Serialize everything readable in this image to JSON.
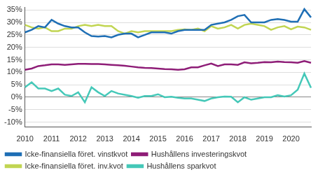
{
  "chart_data": {
    "type": "line",
    "categories": [
      "2010",
      null,
      null,
      null,
      "2011",
      null,
      null,
      null,
      "2012",
      null,
      null,
      null,
      "2013",
      null,
      null,
      null,
      "2014",
      null,
      null,
      null,
      "2015",
      null,
      null,
      null,
      "2016",
      null,
      null,
      null,
      "2017",
      null,
      null,
      null,
      "2018",
      null,
      null,
      null,
      "2019",
      null,
      null,
      null,
      "2020",
      null,
      null,
      null
    ],
    "series": [
      {
        "name": "Icke-finansiella föret. vinstkvot",
        "color": "#1f6fb5",
        "values": [
          26,
          27,
          28.5,
          28,
          31,
          29.5,
          28.5,
          28,
          28,
          26,
          24.5,
          24.3,
          24.5,
          24,
          25,
          25.5,
          25.5,
          24,
          25,
          26,
          26,
          26,
          25.5,
          26.5,
          27,
          27,
          27,
          27,
          29,
          29.5,
          30,
          31,
          32.5,
          33,
          30,
          30,
          30,
          31,
          31.3,
          31,
          30.3,
          30.3,
          35.3,
          32
        ]
      },
      {
        "name": "Hushållens investeringskvot",
        "color": "#8e1d77",
        "values": [
          11,
          11.5,
          12.5,
          12.8,
          13.2,
          13.2,
          13,
          13.2,
          13.4,
          13.4,
          13.3,
          13.3,
          13.2,
          13,
          12.8,
          12.6,
          12.3,
          12,
          11.8,
          11.7,
          11.5,
          11.3,
          11.2,
          11,
          11.2,
          12,
          12,
          12.8,
          13.5,
          12.5,
          13.2,
          13.2,
          13,
          14,
          13.6,
          13.8,
          14.1,
          14,
          14.3,
          14.1,
          14,
          13.8,
          14.5,
          13.8
        ]
      },
      {
        "name": "Icke-finansiella föret. inv.kvot",
        "color": "#c1d552",
        "values": [
          29,
          28,
          27.5,
          28,
          26.5,
          26.5,
          27.5,
          27.5,
          28.5,
          29,
          28.5,
          29,
          28.5,
          28.5,
          26.5,
          25.5,
          26.5,
          26,
          26.5,
          26.5,
          26.5,
          26.5,
          26.5,
          27,
          27.2,
          27,
          27.5,
          26.5,
          28.5,
          27.5,
          28,
          29,
          27.5,
          29,
          29.5,
          29,
          28.5,
          27,
          28,
          28.5,
          27.2,
          28.3,
          28,
          27
        ]
      },
      {
        "name": "Hushållens sparkvot",
        "color": "#45c8b8",
        "values": [
          4,
          6,
          3.5,
          3.5,
          2.5,
          3.5,
          1,
          0.5,
          2,
          -2,
          4,
          2,
          0.5,
          2.5,
          1.5,
          1,
          0.5,
          -0.2,
          0.5,
          0.5,
          1.2,
          0,
          0.2,
          -0.2,
          -0.5,
          -0.5,
          -1,
          -1.5,
          -0.5,
          0,
          0.3,
          0.2,
          -2,
          0,
          -1,
          -0.5,
          0,
          0,
          0.8,
          0.3,
          0.8,
          3,
          9.5,
          3.8
        ]
      }
    ],
    "ylim": [
      -12,
      36
    ],
    "yticks": [
      {
        "value": -10,
        "label": "-10%"
      },
      {
        "value": -5,
        "label": "-5%"
      },
      {
        "value": 0,
        "label": "0%"
      },
      {
        "value": 5,
        "label": "5%"
      },
      {
        "value": 10,
        "label": "10%"
      },
      {
        "value": 15,
        "label": "15%"
      },
      {
        "value": 20,
        "label": "20%"
      },
      {
        "value": 25,
        "label": "25%"
      },
      {
        "value": 30,
        "label": "30%"
      },
      {
        "value": 35,
        "label": "35%"
      }
    ],
    "grid": true,
    "legend": "bottom"
  }
}
